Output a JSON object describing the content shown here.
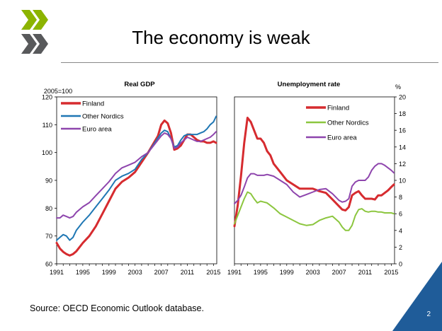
{
  "slide": {
    "title": "The economy is weak",
    "source": "Source: OECD Economic Outlook database.",
    "page_number": "2",
    "accent_color": "#1f5c99",
    "logo_colors": [
      "#8cb400",
      "#58595b"
    ]
  },
  "chart_data": [
    {
      "type": "line",
      "title": "Real GDP",
      "ylabel": "2005=100",
      "xlim": [
        1991,
        2015.5
      ],
      "ylim": [
        60,
        120
      ],
      "x_ticks": [
        "1991",
        "1995",
        "1999",
        "2003",
        "2007",
        "2011",
        "2015"
      ],
      "y_ticks": [
        "60",
        "70",
        "80",
        "90",
        "100",
        "110",
        "120"
      ],
      "legend_position": "top-left",
      "series": [
        {
          "name": "Finland",
          "color": "#d62b2f",
          "x": [
            1991,
            1991.5,
            1992,
            1992.5,
            1993,
            1993.5,
            1994,
            1994.5,
            1995,
            1996,
            1997,
            1998,
            1999,
            2000,
            2001,
            2002,
            2003,
            2004,
            2005,
            2006,
            2006.5,
            2007,
            2007.5,
            2008,
            2008.5,
            2009,
            2009.5,
            2010,
            2010.5,
            2011,
            2011.5,
            2012,
            2012.5,
            2013,
            2013.5,
            2014,
            2014.5,
            2015,
            2015.4
          ],
          "y": [
            67.5,
            65.5,
            64.3,
            63.5,
            63,
            63.5,
            64.5,
            66,
            67.5,
            70,
            73.5,
            78,
            82.5,
            87,
            89.5,
            91,
            93,
            96.5,
            100,
            104,
            106,
            110,
            111.5,
            110.5,
            107,
            101,
            101.5,
            102.5,
            104.5,
            106.5,
            106.5,
            105.5,
            104.5,
            104,
            104,
            103.5,
            103.5,
            104,
            103.5
          ]
        },
        {
          "name": "Other Nordics",
          "color": "#1f77b4",
          "x": [
            1991,
            1991.5,
            1992,
            1992.5,
            1993,
            1993.5,
            1994,
            1995,
            1996,
            1997,
            1998,
            1999,
            2000,
            2001,
            2002,
            2003,
            2004,
            2005,
            2006,
            2007,
            2007.5,
            2008,
            2008.5,
            2009,
            2009.5,
            2010,
            2010.5,
            2011,
            2011.5,
            2012,
            2012.5,
            2013,
            2013.5,
            2014,
            2014.5,
            2015,
            2015.4
          ],
          "y": [
            68.5,
            69.5,
            70.5,
            70,
            68.5,
            69.5,
            72,
            75,
            77.5,
            80.5,
            83.5,
            86.5,
            90,
            91.5,
            92.5,
            94,
            97.5,
            100,
            103.5,
            107,
            108,
            107.5,
            105,
            102,
            102.5,
            104.5,
            106,
            106.5,
            106.5,
            106.5,
            106.5,
            107,
            107.5,
            108.5,
            110,
            111,
            113
          ]
        },
        {
          "name": "Euro area",
          "color": "#8e45ad",
          "x": [
            1991,
            1991.5,
            1992,
            1992.5,
            1993,
            1993.5,
            1994,
            1995,
            1996,
            1997,
            1998,
            1999,
            2000,
            2001,
            2002,
            2003,
            2004,
            2005,
            2006,
            2007,
            2007.5,
            2008,
            2008.5,
            2009,
            2009.5,
            2010,
            2010.5,
            2011,
            2011.5,
            2012,
            2012.5,
            2013,
            2013.5,
            2014,
            2014.5,
            2015,
            2015.4
          ],
          "y": [
            76.5,
            76.5,
            77.5,
            77,
            76.5,
            77,
            78.5,
            80.5,
            82,
            84.5,
            87,
            89.5,
            92.5,
            94.5,
            95.5,
            96.5,
            98.5,
            100,
            103,
            106,
            107,
            106.5,
            105,
            101.5,
            102,
            103.5,
            104.5,
            105.5,
            105,
            104.5,
            104,
            104,
            104.5,
            105,
            105.5,
            106.5,
            107.5
          ]
        }
      ]
    },
    {
      "type": "line",
      "title": "Unemployment rate",
      "ylabel": "%",
      "xlim": [
        1991,
        2015.5
      ],
      "ylim": [
        0,
        20
      ],
      "x_ticks": [
        "1991",
        "1995",
        "1999",
        "2003",
        "2007",
        "2011",
        "2015"
      ],
      "y_ticks": [
        "0",
        "2",
        "4",
        "6",
        "8",
        "10",
        "12",
        "14",
        "16",
        "18",
        "20"
      ],
      "legend_position": "top-right",
      "series": [
        {
          "name": "Finland",
          "color": "#d62b2f",
          "x": [
            1991,
            1991.5,
            1992,
            1992.5,
            1993,
            1993.5,
            1994,
            1994.5,
            1995,
            1995.5,
            1996,
            1996.5,
            1997,
            1998,
            1999,
            2000,
            2001,
            2002,
            2003,
            2004,
            2005,
            2006,
            2007,
            2007.5,
            2008,
            2008.5,
            2009,
            2009.5,
            2010,
            2010.5,
            2011,
            2011.5,
            2012,
            2012.5,
            2013,
            2013.5,
            2014,
            2014.5,
            2015,
            2015.4
          ],
          "y": [
            4.5,
            7,
            10.5,
            14.5,
            17.5,
            17,
            16,
            15,
            15,
            14.5,
            13.5,
            13,
            12,
            11,
            10,
            9.5,
            9,
            9,
            9,
            8.7,
            8.5,
            7.7,
            6.9,
            6.5,
            6.4,
            6.8,
            8.2,
            8.5,
            8.7,
            8.2,
            7.8,
            7.8,
            7.8,
            7.7,
            8.2,
            8.2,
            8.5,
            8.8,
            9.2,
            9.5
          ]
        },
        {
          "name": "Other Nordics",
          "color": "#8cc63f",
          "x": [
            1991,
            1991.5,
            1992,
            1992.5,
            1993,
            1993.5,
            1994,
            1994.5,
            1995,
            1995.5,
            1996,
            1996.5,
            1997,
            1998,
            1999,
            2000,
            2001,
            2002,
            2003,
            2004,
            2005,
            2006,
            2007,
            2007.5,
            2008,
            2008.5,
            2009,
            2009.5,
            2010,
            2010.5,
            2011,
            2011.5,
            2012,
            2012.5,
            2013,
            2013.5,
            2014,
            2014.5,
            2015,
            2015.4
          ],
          "y": [
            4.8,
            5.8,
            6.8,
            7.8,
            8.6,
            8.4,
            7.8,
            7.3,
            7.5,
            7.4,
            7.3,
            7,
            6.7,
            6,
            5.6,
            5.2,
            4.8,
            4.6,
            4.7,
            5.2,
            5.5,
            5.7,
            5,
            4.4,
            4,
            4,
            4.6,
            5.8,
            6.5,
            6.6,
            6.3,
            6.2,
            6.3,
            6.3,
            6.2,
            6.2,
            6.1,
            6.1,
            6.1,
            6
          ]
        },
        {
          "name": "Euro area",
          "color": "#8e45ad",
          "x": [
            1991,
            1991.5,
            1992,
            1992.5,
            1993,
            1993.5,
            1994,
            1994.5,
            1995,
            1995.5,
            1996,
            1996.5,
            1997,
            1998,
            1999,
            2000,
            2001,
            2002,
            2003,
            2004,
            2005,
            2006,
            2007,
            2007.5,
            2008,
            2008.5,
            2009,
            2009.5,
            2010,
            2010.5,
            2011,
            2011.5,
            2012,
            2012.5,
            2013,
            2013.5,
            2014,
            2014.5,
            2015,
            2015.4
          ],
          "y": [
            7.2,
            7.6,
            8.2,
            9.2,
            10.3,
            10.8,
            10.8,
            10.6,
            10.6,
            10.6,
            10.7,
            10.6,
            10.5,
            10,
            9.5,
            8.6,
            8,
            8.3,
            8.6,
            8.9,
            9,
            8.4,
            7.6,
            7.4,
            7.5,
            7.8,
            9.3,
            9.8,
            10,
            10,
            10,
            10.4,
            11.2,
            11.7,
            12,
            12,
            11.8,
            11.5,
            11.2,
            10.9
          ]
        }
      ]
    }
  ]
}
